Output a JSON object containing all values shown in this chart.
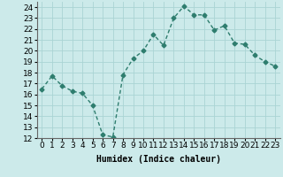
{
  "x": [
    0,
    1,
    2,
    3,
    4,
    5,
    6,
    7,
    8,
    9,
    10,
    11,
    12,
    13,
    14,
    15,
    16,
    17,
    18,
    19,
    20,
    21,
    22,
    23
  ],
  "y": [
    16.5,
    17.7,
    16.8,
    16.3,
    16.1,
    15.0,
    12.3,
    12.1,
    17.8,
    19.3,
    20.0,
    21.5,
    20.5,
    23.0,
    24.1,
    23.3,
    23.3,
    21.9,
    22.3,
    20.7,
    20.6,
    19.6,
    19.0,
    18.6
  ],
  "line_color": "#2e7d6e",
  "marker": "D",
  "marker_size": 2.5,
  "bg_color": "#cceaea",
  "grid_color": "#aad4d4",
  "xlabel": "Humidex (Indice chaleur)",
  "ylim": [
    12,
    24.5
  ],
  "xlim": [
    -0.5,
    23.5
  ],
  "yticks": [
    12,
    13,
    14,
    15,
    16,
    17,
    18,
    19,
    20,
    21,
    22,
    23,
    24
  ],
  "xticks": [
    0,
    1,
    2,
    3,
    4,
    5,
    6,
    7,
    8,
    9,
    10,
    11,
    12,
    13,
    14,
    15,
    16,
    17,
    18,
    19,
    20,
    21,
    22,
    23
  ],
  "xlabel_fontsize": 7,
  "tick_fontsize": 6.5,
  "line_width": 1.0
}
